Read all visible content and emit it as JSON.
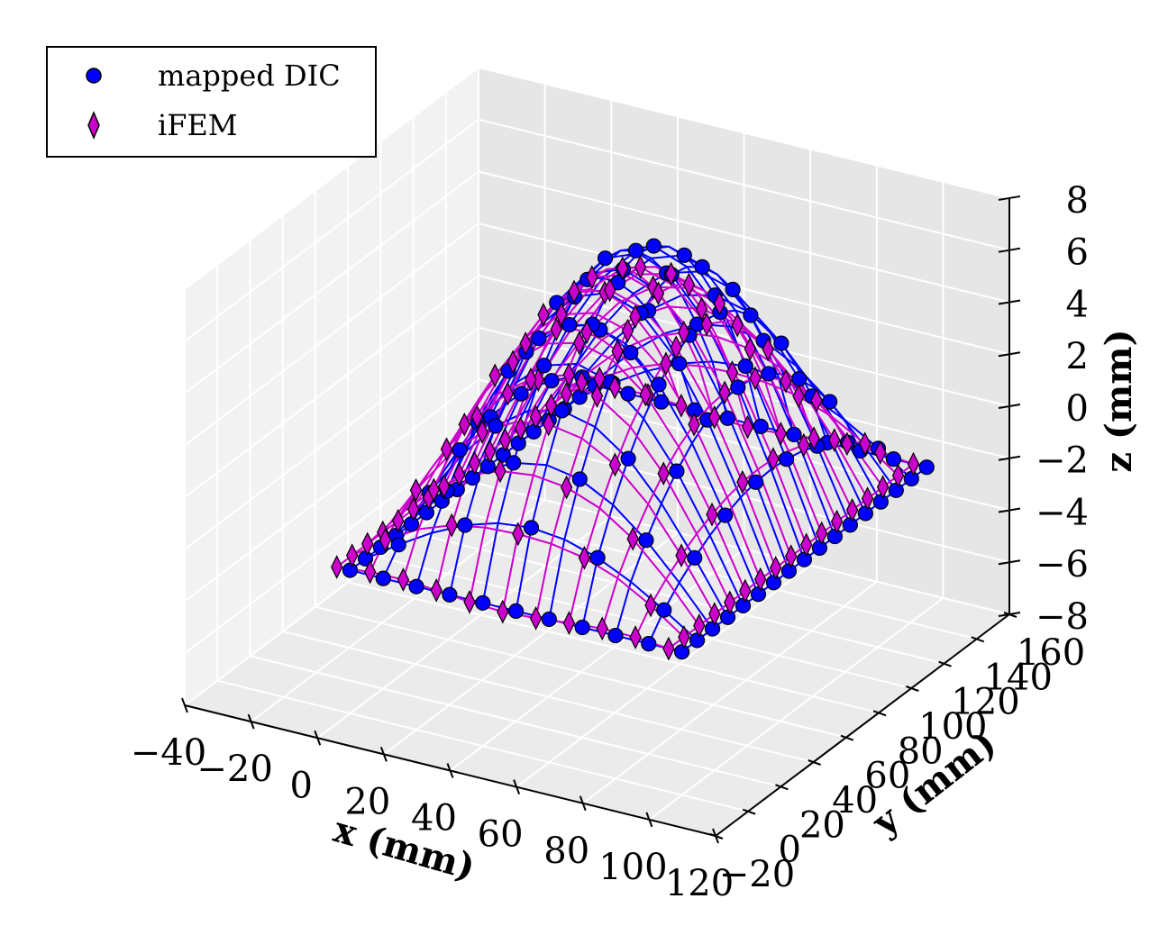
{
  "chart_data": {
    "type": "surface3d-scatter",
    "legend": {
      "position": "top-left",
      "entries": [
        {
          "label": "mapped DIC",
          "marker": "circle",
          "color": "#0000ff"
        },
        {
          "label": "iFEM",
          "marker": "diamond",
          "color": "#cc00cc"
        }
      ]
    },
    "grid": true,
    "x_axis": {
      "label": "x (mm)",
      "lim": [
        -40,
        120
      ],
      "ticks": [
        -40,
        -20,
        0,
        20,
        40,
        60,
        80,
        100,
        120
      ],
      "tick_labels": [
        "−40",
        "−20",
        "0",
        "20",
        "40",
        "60",
        "80",
        "100",
        "120"
      ]
    },
    "y_axis": {
      "label": "y (mm)",
      "lim": [
        -20,
        160
      ],
      "ticks": [
        -20,
        0,
        20,
        40,
        60,
        80,
        100,
        120,
        140,
        160
      ],
      "tick_labels": [
        "−20",
        "0",
        "20",
        "40",
        "60",
        "80",
        "100",
        "120",
        "140",
        "160"
      ]
    },
    "z_axis": {
      "label": "z (mm)",
      "lim": [
        -8,
        8
      ],
      "ticks": [
        -8,
        -6,
        -4,
        -2,
        0,
        2,
        4,
        6,
        8
      ],
      "tick_labels": [
        "−8",
        "−6",
        "−4",
        "−2",
        "0",
        "2",
        "4",
        "6",
        "8"
      ]
    },
    "surface": {
      "description_free": true,
      "x_range": [
        0,
        100
      ],
      "y_range": [
        0,
        150
      ],
      "nx": 11,
      "ny": 17,
      "z_edge": -2.5,
      "z_peak": 7.7
    },
    "series": [
      {
        "name": "mapped DIC",
        "color": "#0000ff",
        "marker": "circle",
        "peak_z": 7.7
      },
      {
        "name": "iFEM",
        "color": "#cc00cc",
        "marker": "diamond",
        "peak_z": 6.9
      }
    ]
  }
}
